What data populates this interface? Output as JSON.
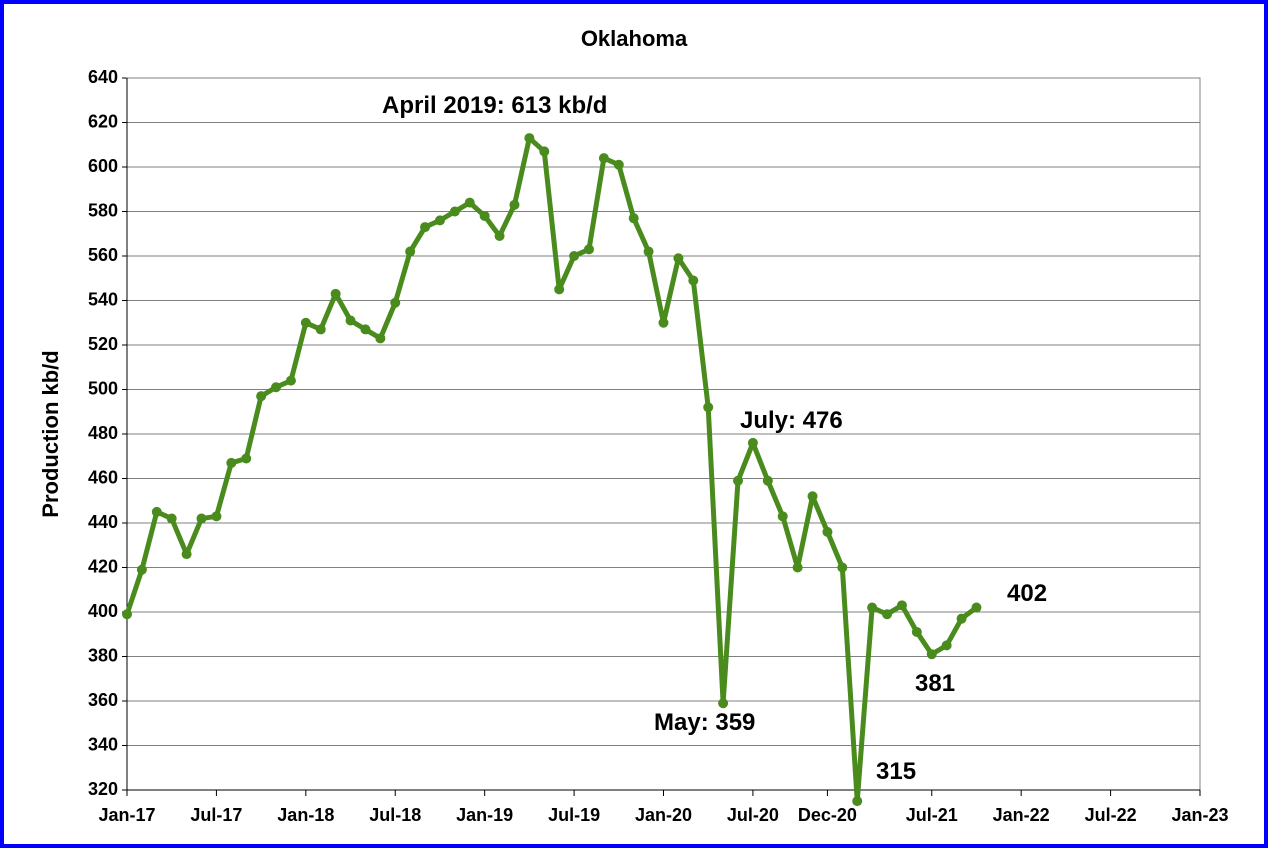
{
  "chart_data": {
    "type": "line",
    "title": "Oklahoma",
    "y_label": "Production kb/d",
    "x": [
      "2017-01",
      "2017-02",
      "2017-03",
      "2017-04",
      "2017-05",
      "2017-06",
      "2017-07",
      "2017-08",
      "2017-09",
      "2017-10",
      "2017-11",
      "2017-12",
      "2018-01",
      "2018-02",
      "2018-03",
      "2018-04",
      "2018-05",
      "2018-06",
      "2018-07",
      "2018-08",
      "2018-09",
      "2018-10",
      "2018-11",
      "2018-12",
      "2019-01",
      "2019-02",
      "2019-03",
      "2019-04",
      "2019-05",
      "2019-06",
      "2019-07",
      "2019-08",
      "2019-09",
      "2019-10",
      "2019-11",
      "2019-12",
      "2020-01",
      "2020-02",
      "2020-03",
      "2020-04",
      "2020-05",
      "2020-06",
      "2020-07",
      "2020-08",
      "2020-09",
      "2020-10",
      "2020-11",
      "2020-12",
      "2021-01",
      "2021-02",
      "2021-03",
      "2021-04",
      "2021-05",
      "2021-06",
      "2021-07",
      "2021-08",
      "2021-09",
      "2021-10"
    ],
    "series": [
      {
        "color": "#4a8b1e",
        "values": [
          399,
          419,
          445,
          442,
          426,
          442,
          443,
          467,
          469,
          497,
          501,
          504,
          530,
          527,
          543,
          531,
          527,
          523,
          539,
          562,
          573,
          576,
          580,
          584,
          578,
          569,
          583,
          613,
          607,
          545,
          560,
          563,
          604,
          601,
          577,
          562,
          530,
          559,
          549,
          492,
          359,
          459,
          476,
          459,
          443,
          420,
          452,
          436,
          420,
          315,
          402,
          399,
          403,
          391,
          381,
          385,
          397,
          402
        ]
      }
    ],
    "xlim": [
      "2017-01",
      "2023-01"
    ],
    "xticks": [
      {
        "value": "2017-01",
        "label": "Jan-17"
      },
      {
        "value": "2017-07",
        "label": "Jul-17"
      },
      {
        "value": "2018-01",
        "label": "Jan-18"
      },
      {
        "value": "2018-07",
        "label": "Jul-18"
      },
      {
        "value": "2019-01",
        "label": "Jan-19"
      },
      {
        "value": "2019-07",
        "label": "Jul-19"
      },
      {
        "value": "2020-01",
        "label": "Jan-20"
      },
      {
        "value": "2020-07",
        "label": "Jul-20"
      },
      {
        "value": "2020-12",
        "label": "Dec-20"
      },
      {
        "value": "2021-07",
        "label": "Jul-21"
      },
      {
        "value": "2022-01",
        "label": "Jan-22"
      },
      {
        "value": "2022-07",
        "label": "Jul-22"
      },
      {
        "value": "2023-01",
        "label": "Jan-23"
      }
    ],
    "ylim": [
      320,
      640
    ],
    "yticks": [
      320,
      340,
      360,
      380,
      400,
      420,
      440,
      460,
      480,
      500,
      520,
      540,
      560,
      580,
      600,
      620,
      640
    ],
    "grid": true,
    "annotations": [
      "April 2019: 613 kb/d",
      "May: 359",
      "July: 476",
      "315",
      "381",
      "402"
    ]
  }
}
